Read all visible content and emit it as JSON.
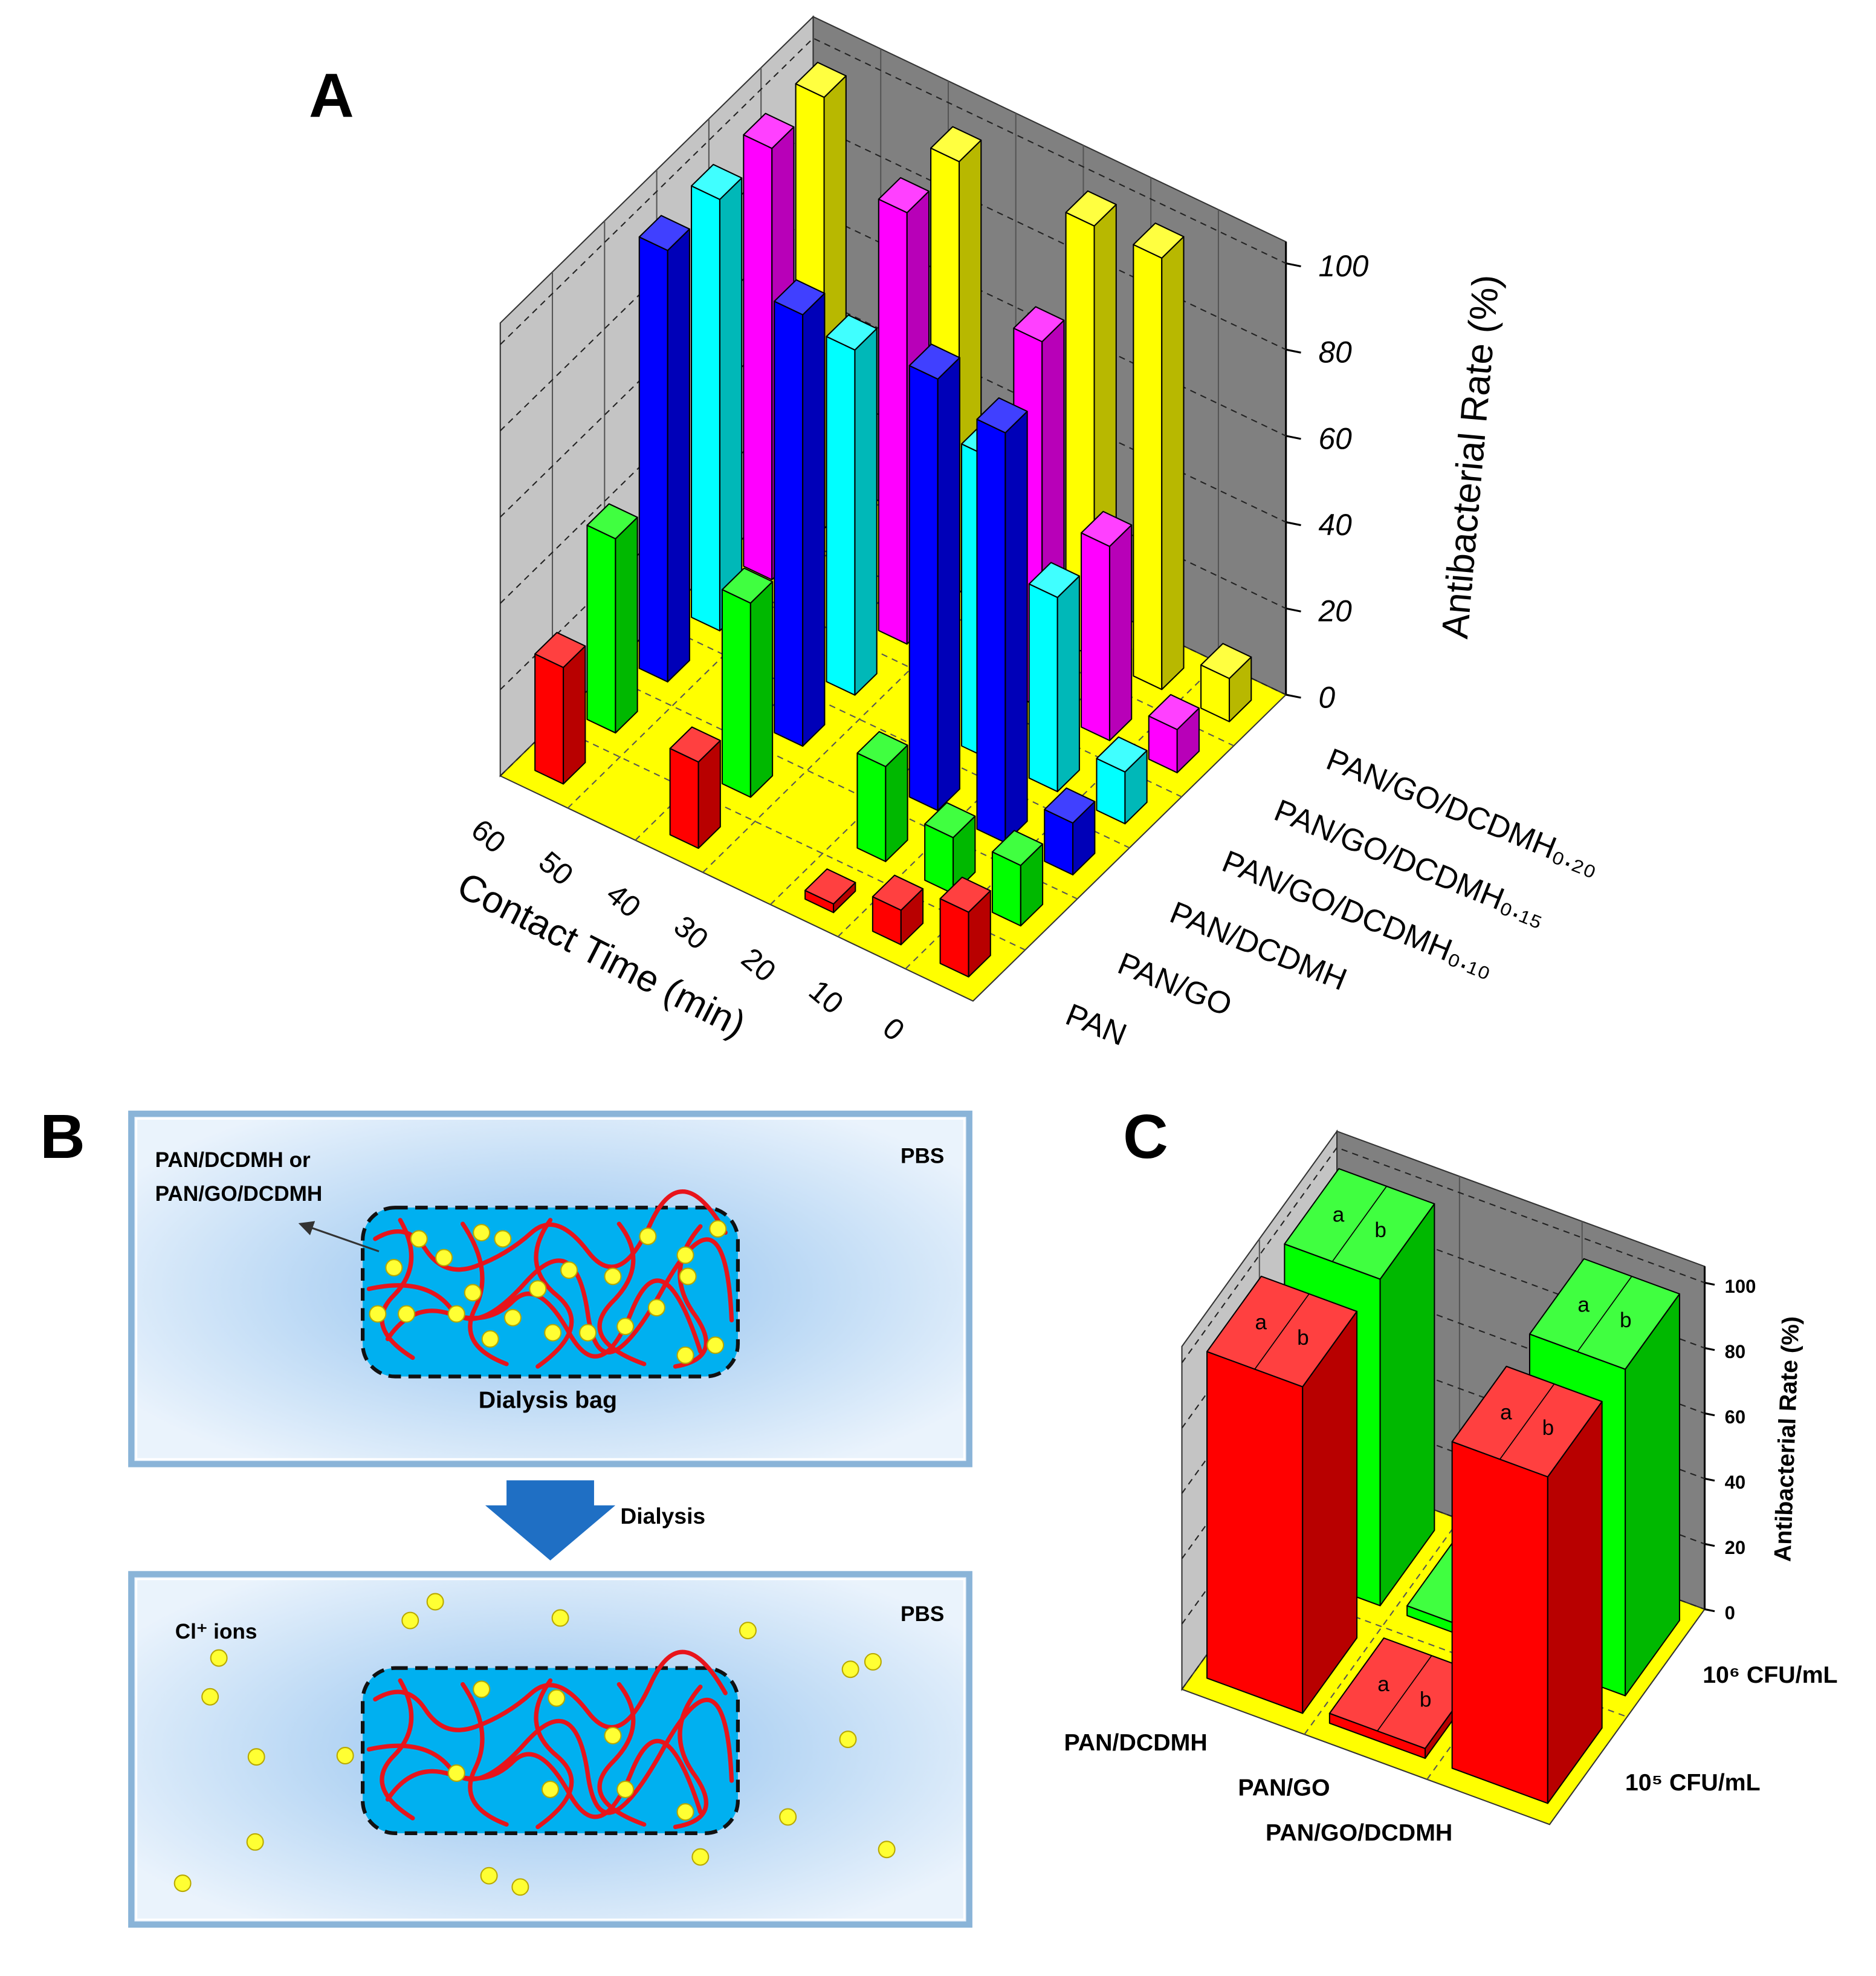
{
  "panel_labels": [
    "A",
    "B",
    "C"
  ],
  "chart_data": [
    {
      "type": "bar3d",
      "categories": [
        "0",
        "10",
        "20",
        "30",
        "40",
        "50",
        "60"
      ],
      "xlabel": "Contact Time (min)",
      "ylabel": "Antibacterial Rate (%)",
      "ylim": [
        0,
        105
      ],
      "yticks": [
        0,
        20,
        40,
        60,
        80,
        100
      ],
      "series": [
        {
          "name": "PAN",
          "color": "#ff0000",
          "values": [
            15,
            8,
            2,
            null,
            20,
            null,
            27
          ]
        },
        {
          "name": "PAN/GO",
          "color": "#00ff00",
          "values": [
            14,
            13,
            22,
            null,
            45,
            null,
            45
          ]
        },
        {
          "name": "PAN/DCDMH",
          "color": "#0000ff",
          "values": [
            12,
            95,
            100,
            null,
            100,
            null,
            100
          ]
        },
        {
          "name": "PAN/GO/DCDMH₀.₁₀",
          "color": "#00ffff",
          "values": [
            12,
            45,
            70,
            null,
            80,
            null,
            100
          ]
        },
        {
          "name": "PAN/GO/DCDMH₀.₁₅",
          "color": "#ff00ff",
          "values": [
            10,
            45,
            85,
            null,
            100,
            null,
            100
          ]
        },
        {
          "name": "PAN/GO/DCDMH₀.₂₀",
          "color": "#ffff00",
          "values": [
            10,
            100,
            100,
            null,
            100,
            null,
            100
          ]
        }
      ]
    },
    {
      "type": "bar3d",
      "categories": [
        "PAN/DCDMH",
        "PAN/GO",
        "PAN/GO/DCDMH"
      ],
      "ylabel": "Antibacterial Rate (%)",
      "ylim": [
        0,
        105
      ],
      "yticks": [
        0,
        20,
        40,
        60,
        80,
        100
      ],
      "annotations": [
        "a",
        "b"
      ],
      "series": [
        {
          "name": "10⁵ CFU/mL",
          "color": "#ff0000",
          "values": [
            100,
            3,
            100
          ]
        },
        {
          "name": "10⁶ CFU/mL",
          "color": "#00ff00",
          "values": [
            100,
            3,
            100
          ]
        }
      ]
    }
  ],
  "diagram": {
    "top_box": {
      "material_line1": "PAN/DCDMH or",
      "material_line2": "PAN/GO/DCDMH",
      "medium": "PBS",
      "bag": "Dialysis bag"
    },
    "step": "Dialysis",
    "bottom_box": {
      "medium": "PBS",
      "ions": "Cl⁺ ions"
    }
  }
}
